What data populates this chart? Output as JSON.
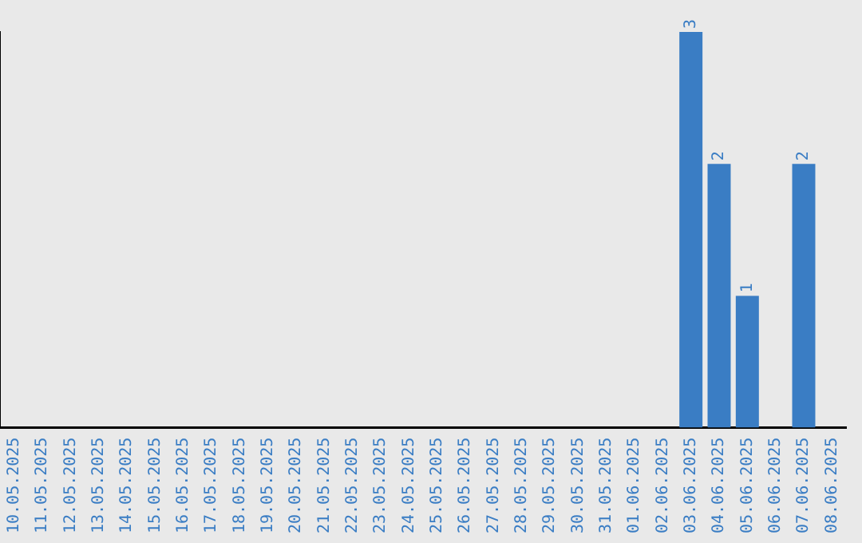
{
  "chart_data": {
    "type": "bar",
    "categories": [
      "10.05.2025",
      "11.05.2025",
      "12.05.2025",
      "13.05.2025",
      "14.05.2025",
      "15.05.2025",
      "16.05.2025",
      "17.05.2025",
      "18.05.2025",
      "19.05.2025",
      "20.05.2025",
      "21.05.2025",
      "22.05.2025",
      "23.05.2025",
      "24.05.2025",
      "25.05.2025",
      "26.05.2025",
      "27.05.2025",
      "28.05.2025",
      "29.05.2025",
      "30.05.2025",
      "31.05.2025",
      "01.06.2025",
      "02.06.2025",
      "03.06.2025",
      "04.06.2025",
      "05.06.2025",
      "06.06.2025",
      "07.06.2025",
      "08.06.2025"
    ],
    "values": [
      null,
      null,
      null,
      null,
      null,
      null,
      null,
      null,
      null,
      null,
      null,
      null,
      null,
      null,
      null,
      null,
      null,
      null,
      null,
      null,
      null,
      null,
      null,
      null,
      3,
      2,
      1,
      null,
      2,
      null
    ],
    "value_labels": [
      null,
      null,
      null,
      null,
      null,
      null,
      null,
      null,
      null,
      null,
      null,
      null,
      null,
      null,
      null,
      null,
      null,
      null,
      null,
      null,
      null,
      null,
      null,
      null,
      "3",
      "2",
      "1",
      null,
      "2",
      null
    ],
    "color": "#3a7dc4",
    "tick_labels": "x",
    "grid": false,
    "legend": false
  }
}
